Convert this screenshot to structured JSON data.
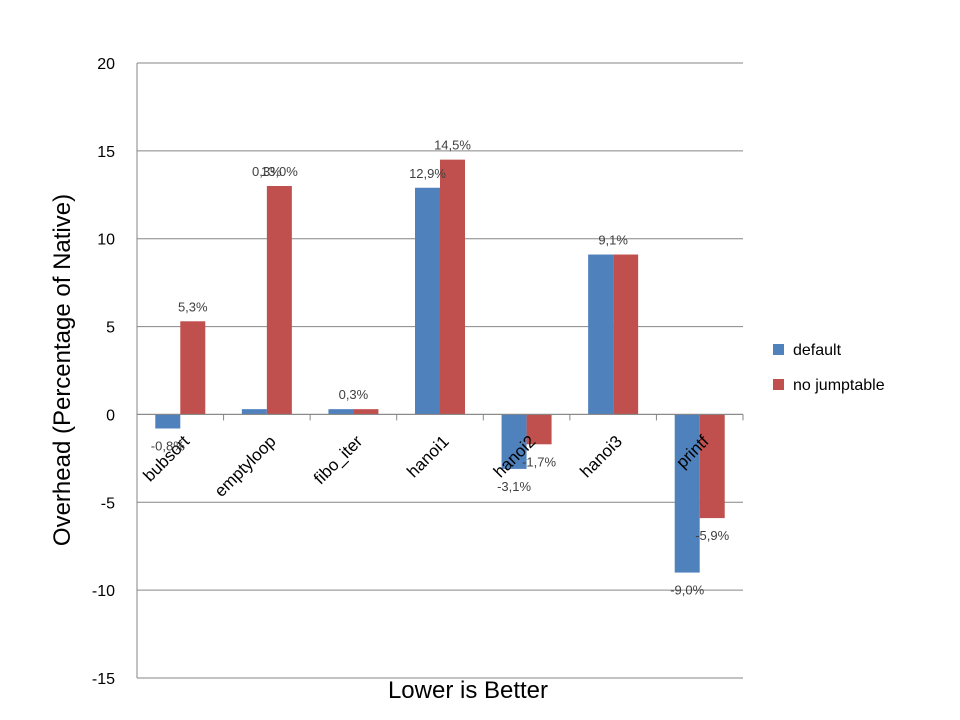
{
  "chart_data": {
    "type": "bar",
    "title": "",
    "xlabel": "Lower is Better",
    "ylabel": "Overhead (Percentage of Native)",
    "ylim": [
      -15,
      20
    ],
    "yticks": [
      20,
      15,
      10,
      5,
      0,
      -5,
      -10,
      -15
    ],
    "grid": true,
    "legend_position": "right",
    "categories": [
      "bubsort",
      "emptyloop",
      "fibo_iter",
      "hanoi1",
      "hanoi2",
      "hanoi3",
      "printf"
    ],
    "series": [
      {
        "name": "default",
        "color": "#4F81BD",
        "values": [
          -0.8,
          0.3,
          0.3,
          12.9,
          -3.1,
          9.1,
          -9.0
        ],
        "labels": [
          "-0,8%",
          "",
          "",
          "12,9%",
          "-3,1%",
          "",
          "-9,0%"
        ]
      },
      {
        "name": "no jumptable",
        "color": "#C0504D",
        "values": [
          5.3,
          13.0,
          0.3,
          14.5,
          -1.7,
          9.1,
          -5.9
        ],
        "labels": [
          "5,3%",
          "13,0%",
          "",
          "14,5%",
          "-1,7%",
          "",
          "-5,9%"
        ]
      }
    ],
    "group_labels": [
      "",
      "0,3%",
      "0,3%",
      "",
      "",
      "9,1%",
      ""
    ]
  }
}
